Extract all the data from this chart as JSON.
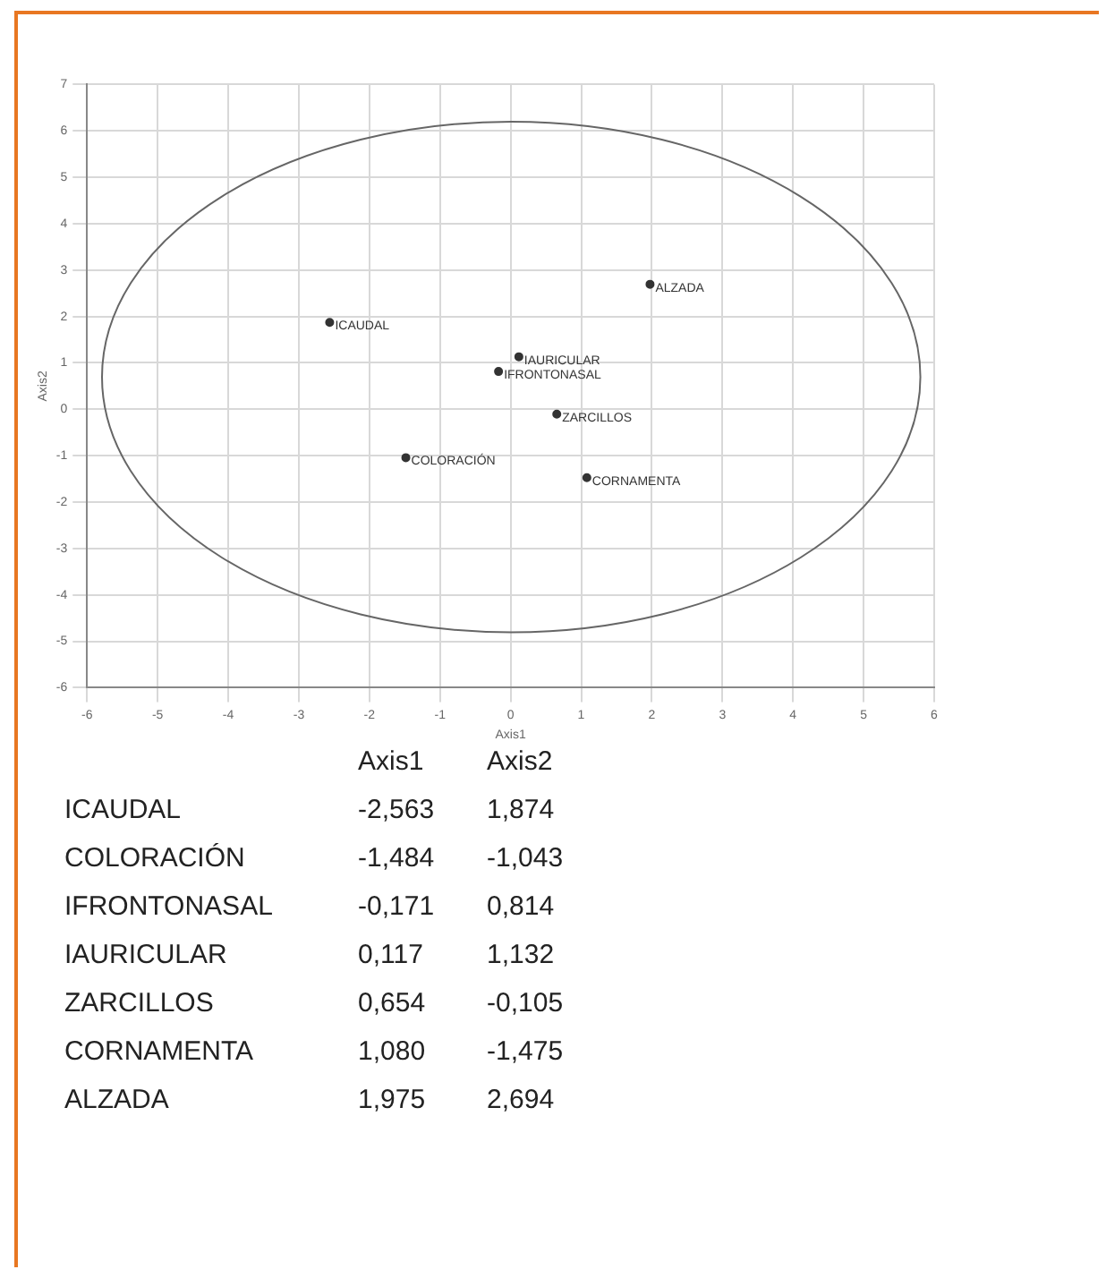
{
  "chart_data": {
    "type": "scatter",
    "xlabel": "Axis1",
    "ylabel": "Axis2",
    "xlim": [
      -6,
      6
    ],
    "ylim": [
      -6,
      7
    ],
    "xticks": [
      -6,
      -5,
      -4,
      -3,
      -2,
      -1,
      0,
      1,
      2,
      3,
      4,
      5,
      6
    ],
    "yticks": [
      -6,
      -5,
      -4,
      -3,
      -2,
      -1,
      0,
      1,
      2,
      3,
      4,
      5,
      6,
      7
    ],
    "grid": true,
    "legend": false,
    "marker": "circle",
    "annotations": [
      "-2,563",
      "1,874",
      "-1,484",
      "-1,043",
      "-0,171",
      "0,814",
      "0,117",
      "1,132",
      "0,654",
      "-0,105",
      "1,080",
      "-1,475",
      "1,975",
      "2,694"
    ],
    "series": [
      {
        "color": "#333333",
        "x": [
          -2.563,
          -1.484,
          -0.171,
          0.117,
          0.654,
          1.08,
          1.975
        ],
        "values": [
          1.874,
          -1.043,
          0.814,
          1.132,
          -0.105,
          -1.475,
          2.694
        ],
        "value_labels": [
          "ICAUDAL",
          "COLORACIÓN",
          "IFRONTONASAL",
          "IAURICULAR",
          "ZARCILLOS",
          "CORNAMENTA",
          "ALZADA"
        ]
      }
    ]
  }
}
